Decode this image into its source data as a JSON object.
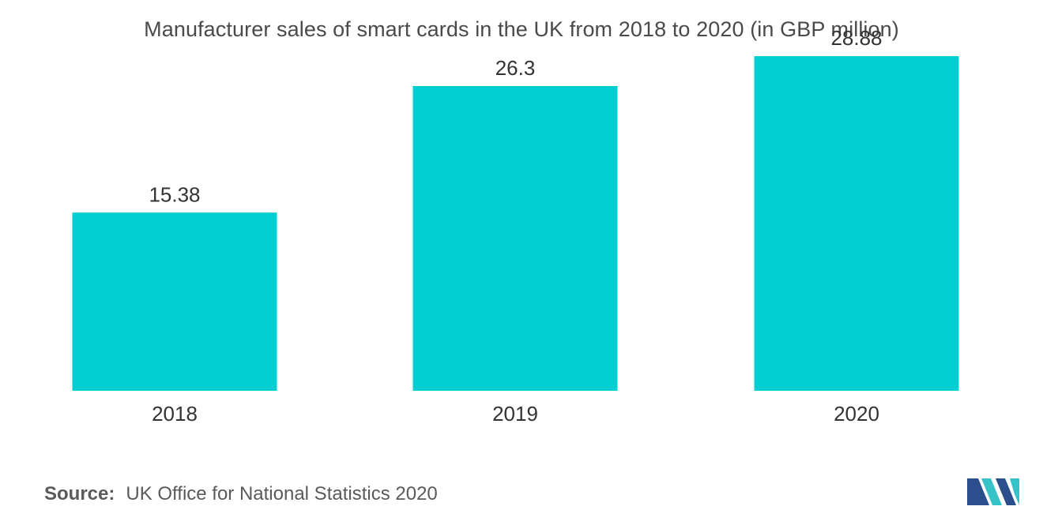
{
  "chart_data": {
    "type": "bar",
    "title": "Manufacturer sales of smart cards in the UK from 2018 to 2020 (in GBP million)",
    "categories": [
      "2018",
      "2019",
      "2020"
    ],
    "values": [
      15.38,
      26.3,
      28.88
    ],
    "value_labels": [
      "15.38",
      "26.3",
      "28.88"
    ],
    "xlabel": "",
    "ylabel": "",
    "ylim": [
      0,
      31
    ],
    "grid": false,
    "legend": "none",
    "bar_color": "#00CED1"
  },
  "source": {
    "label": "Source:",
    "text": "UK Office for National Statistics 2020"
  },
  "logo": {
    "icon": "mordor-intelligence-logo-icon",
    "color_dark": "#2B4E8C",
    "color_light": "#35C3C8"
  }
}
